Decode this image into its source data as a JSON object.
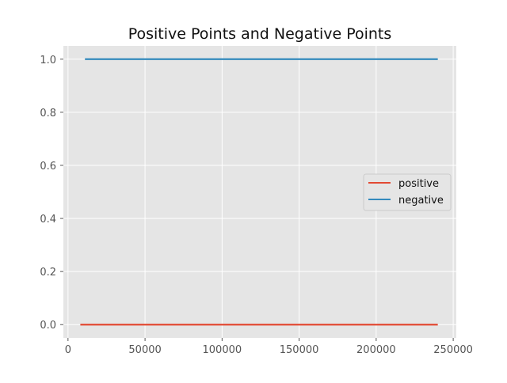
{
  "chart_data": {
    "type": "line",
    "title": "Positive Points and Negative Points",
    "xlabel": "",
    "ylabel": "",
    "xlim": [
      -3000,
      252000
    ],
    "ylim": [
      -0.05,
      1.05
    ],
    "x_ticks": [
      0,
      50000,
      100000,
      150000,
      200000,
      250000
    ],
    "x_tick_labels": [
      "0",
      "50000",
      "100000",
      "150000",
      "200000",
      "250000"
    ],
    "y_ticks": [
      0.0,
      0.2,
      0.4,
      0.6,
      0.8,
      1.0
    ],
    "y_tick_labels": [
      "0.0",
      "0.2",
      "0.4",
      "0.6",
      "0.8",
      "1.0"
    ],
    "grid": true,
    "legend_position": "center-right",
    "series": [
      {
        "name": "positive",
        "color": "#E24A33",
        "x": [
          8000,
          240000
        ],
        "y": [
          0,
          0
        ]
      },
      {
        "name": "negative",
        "color": "#348ABD",
        "x": [
          11000,
          240000
        ],
        "y": [
          1,
          1
        ]
      }
    ]
  }
}
